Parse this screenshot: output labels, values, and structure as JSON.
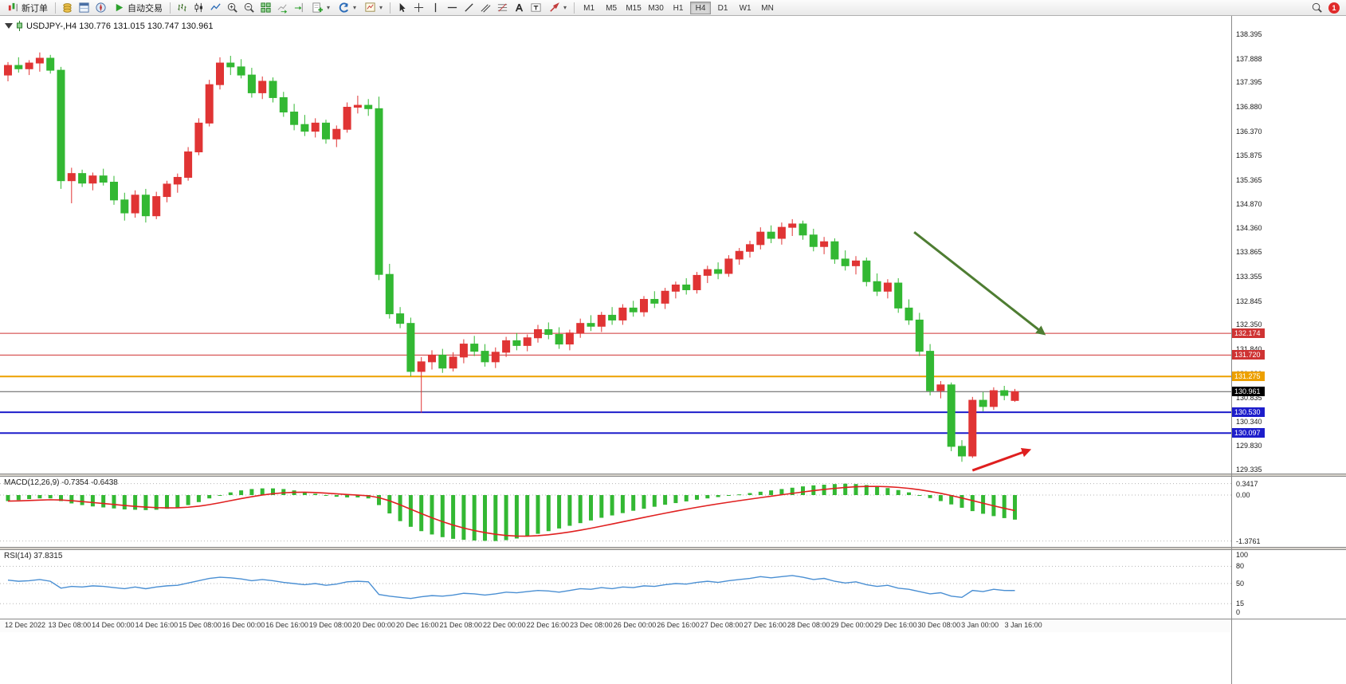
{
  "toolbar": {
    "new_order_label": "新订单",
    "autotrade_label": "自动交易",
    "timeframes": [
      "M1",
      "M5",
      "M15",
      "M30",
      "H1",
      "H4",
      "D1",
      "W1",
      "MN"
    ],
    "active_timeframe": "H4",
    "notification_count": "1"
  },
  "chart": {
    "title": "USDJPY-,H4 130.776 131.015 130.747 130.961",
    "symbol": "USDJPY-",
    "period": "H4",
    "open": "130.776",
    "high": "131.015",
    "low": "130.747",
    "close": "130.961"
  },
  "chart_data": {
    "type": "candlestick",
    "title": "USDJPY-,H4",
    "colors": {
      "up": "#e03434",
      "down": "#33b833",
      "hline_red": "#cf3333",
      "hline_blue": "#1d1dcb",
      "hline_orange": "#eda000",
      "hline_gray": "#5a5a5a",
      "macd_hist": "#33b833",
      "macd_signal": "#e02020",
      "rsi_line": "#4a8fd3",
      "arrow_green": "#4e7d32",
      "arrow_red": "#df1f1f"
    },
    "price_axis": {
      "labels": [
        "138.395",
        "137.888",
        "137.395",
        "136.880",
        "136.370",
        "135.875",
        "135.365",
        "134.870",
        "134.360",
        "133.865",
        "133.355",
        "132.845",
        "132.350",
        "131.840",
        "131.330",
        "130.835",
        "130.340",
        "129.830",
        "129.335"
      ],
      "current": {
        "value": "130.961",
        "color": "#000000"
      }
    },
    "hlines": [
      {
        "price": 132.174,
        "color": "#cf3333",
        "width": 1,
        "tag": "132.174"
      },
      {
        "price": 131.72,
        "color": "#cf3333",
        "width": 1,
        "tag": "131.720"
      },
      {
        "price": 131.275,
        "color": "#eda000",
        "width": 2,
        "tag": "131.275"
      },
      {
        "price": 130.96,
        "color": "#5a5a5a",
        "width": 1,
        "tag": null
      },
      {
        "price": 130.53,
        "color": "#1d1dcb",
        "width": 2,
        "tag": "130.530"
      },
      {
        "price": 130.097,
        "color": "#1d1dcb",
        "width": 2,
        "tag": "130.097"
      }
    ],
    "arrows": [
      {
        "name": "downtrend-arrow",
        "color": "green",
        "from": [
          85.5,
          134.28
        ],
        "to": [
          97.7,
          132.17
        ]
      },
      {
        "name": "reversal-arrow",
        "color": "red",
        "from": [
          91.0,
          129.32
        ],
        "to": [
          96.3,
          129.74
        ]
      }
    ],
    "candles": [
      [
        137.55,
        137.82,
        137.42,
        137.75
      ],
      [
        137.75,
        137.92,
        137.6,
        137.68
      ],
      [
        137.68,
        137.86,
        137.55,
        137.8
      ],
      [
        137.8,
        138.02,
        137.62,
        137.9
      ],
      [
        137.9,
        137.97,
        137.58,
        137.65
      ],
      [
        137.65,
        137.72,
        135.18,
        135.35
      ],
      [
        135.35,
        135.62,
        134.88,
        135.5
      ],
      [
        135.5,
        135.58,
        135.22,
        135.3
      ],
      [
        135.3,
        135.52,
        135.15,
        135.45
      ],
      [
        135.45,
        135.6,
        135.25,
        135.32
      ],
      [
        135.32,
        135.45,
        134.85,
        134.95
      ],
      [
        134.95,
        135.1,
        134.52,
        134.68
      ],
      [
        134.68,
        135.15,
        134.58,
        135.05
      ],
      [
        135.05,
        135.18,
        134.48,
        134.62
      ],
      [
        134.62,
        135.12,
        134.55,
        135.02
      ],
      [
        135.02,
        135.35,
        134.9,
        135.28
      ],
      [
        135.28,
        135.5,
        135.1,
        135.42
      ],
      [
        135.42,
        136.05,
        135.35,
        135.95
      ],
      [
        135.95,
        136.65,
        135.88,
        136.55
      ],
      [
        136.55,
        137.45,
        136.48,
        137.35
      ],
      [
        137.35,
        137.92,
        137.25,
        137.8
      ],
      [
        137.8,
        137.95,
        137.55,
        137.72
      ],
      [
        137.72,
        137.88,
        137.48,
        137.55
      ],
      [
        137.55,
        137.7,
        137.08,
        137.18
      ],
      [
        137.18,
        137.52,
        137.05,
        137.42
      ],
      [
        137.42,
        137.5,
        136.98,
        137.08
      ],
      [
        137.08,
        137.2,
        136.68,
        136.78
      ],
      [
        136.78,
        136.95,
        136.4,
        136.52
      ],
      [
        136.52,
        136.72,
        136.28,
        136.38
      ],
      [
        136.38,
        136.65,
        136.25,
        136.55
      ],
      [
        136.55,
        136.62,
        136.12,
        136.22
      ],
      [
        136.22,
        136.5,
        136.05,
        136.42
      ],
      [
        136.42,
        136.98,
        136.35,
        136.88
      ],
      [
        136.88,
        137.12,
        136.75,
        136.92
      ],
      [
        136.92,
        137.05,
        136.7,
        136.85
      ],
      [
        136.85,
        137.1,
        133.28,
        133.4
      ],
      [
        133.4,
        133.62,
        132.48,
        132.58
      ],
      [
        132.58,
        132.72,
        132.28,
        132.38
      ],
      [
        132.38,
        132.5,
        131.28,
        131.38
      ],
      [
        131.38,
        131.68,
        130.52,
        131.58
      ],
      [
        131.58,
        131.82,
        131.42,
        131.72
      ],
      [
        131.72,
        131.85,
        131.35,
        131.45
      ],
      [
        131.45,
        131.78,
        131.38,
        131.68
      ],
      [
        131.68,
        132.05,
        131.55,
        131.95
      ],
      [
        131.95,
        132.12,
        131.7,
        131.8
      ],
      [
        131.8,
        131.95,
        131.48,
        131.58
      ],
      [
        131.58,
        131.88,
        131.45,
        131.78
      ],
      [
        131.78,
        132.1,
        131.68,
        132.02
      ],
      [
        132.02,
        132.18,
        131.82,
        131.92
      ],
      [
        131.92,
        132.15,
        131.8,
        132.08
      ],
      [
        132.08,
        132.35,
        131.98,
        132.25
      ],
      [
        132.25,
        132.4,
        132.05,
        132.15
      ],
      [
        132.15,
        132.3,
        131.85,
        131.95
      ],
      [
        131.95,
        132.25,
        131.82,
        132.18
      ],
      [
        132.18,
        132.48,
        132.08,
        132.38
      ],
      [
        132.38,
        132.55,
        132.22,
        132.32
      ],
      [
        132.32,
        132.62,
        132.2,
        132.55
      ],
      [
        132.55,
        132.72,
        132.35,
        132.45
      ],
      [
        132.45,
        132.78,
        132.35,
        132.7
      ],
      [
        132.7,
        132.85,
        132.52,
        132.62
      ],
      [
        132.62,
        132.95,
        132.52,
        132.88
      ],
      [
        132.88,
        133.05,
        132.7,
        132.8
      ],
      [
        132.8,
        133.12,
        132.68,
        133.05
      ],
      [
        133.05,
        133.25,
        132.9,
        133.18
      ],
      [
        133.18,
        133.32,
        132.98,
        133.08
      ],
      [
        133.08,
        133.45,
        133.0,
        133.38
      ],
      [
        133.38,
        133.58,
        133.22,
        133.5
      ],
      [
        133.5,
        133.65,
        133.3,
        133.42
      ],
      [
        133.42,
        133.8,
        133.35,
        133.72
      ],
      [
        133.72,
        133.95,
        133.6,
        133.88
      ],
      [
        133.88,
        134.1,
        133.75,
        134.02
      ],
      [
        134.02,
        134.38,
        133.92,
        134.28
      ],
      [
        134.28,
        134.42,
        134.05,
        134.15
      ],
      [
        134.15,
        134.48,
        134.02,
        134.38
      ],
      [
        134.38,
        134.55,
        134.2,
        134.45
      ],
      [
        134.45,
        134.52,
        134.12,
        134.22
      ],
      [
        134.22,
        134.35,
        133.88,
        133.98
      ],
      [
        133.98,
        134.18,
        133.82,
        134.08
      ],
      [
        134.08,
        134.15,
        133.62,
        133.72
      ],
      [
        133.72,
        133.9,
        133.48,
        133.58
      ],
      [
        133.58,
        133.78,
        133.4,
        133.68
      ],
      [
        133.68,
        133.75,
        133.15,
        133.25
      ],
      [
        133.25,
        133.42,
        132.95,
        133.05
      ],
      [
        133.05,
        133.3,
        132.9,
        133.22
      ],
      [
        133.22,
        133.32,
        132.6,
        132.7
      ],
      [
        132.7,
        132.88,
        132.35,
        132.45
      ],
      [
        132.45,
        132.6,
        131.7,
        131.8
      ],
      [
        131.8,
        131.95,
        130.88,
        130.98
      ],
      [
        130.98,
        131.18,
        130.82,
        131.1
      ],
      [
        131.1,
        131.15,
        129.72,
        129.82
      ],
      [
        129.82,
        129.95,
        129.5,
        129.62
      ],
      [
        129.62,
        130.85,
        129.58,
        130.78
      ],
      [
        130.78,
        130.95,
        130.55,
        130.65
      ],
      [
        130.65,
        131.05,
        130.58,
        130.98
      ],
      [
        130.98,
        131.08,
        130.78,
        130.88
      ],
      [
        130.776,
        131.015,
        130.747,
        130.961
      ]
    ],
    "macd": {
      "label": "MACD(12,26,9) -0.7354 -0.6438",
      "params": "12,26,9",
      "main_value": -0.7354,
      "signal_value": -0.6438,
      "axis_labels": [
        "0.3417",
        "0.00",
        "-1.3761"
      ],
      "axis_values": [
        0.3417,
        0,
        -1.3761
      ],
      "histogram": [
        -0.18,
        -0.15,
        -0.12,
        -0.1,
        -0.1,
        -0.18,
        -0.25,
        -0.3,
        -0.34,
        -0.37,
        -0.4,
        -0.43,
        -0.44,
        -0.45,
        -0.44,
        -0.41,
        -0.37,
        -0.3,
        -0.21,
        -0.1,
        0.0,
        0.08,
        0.14,
        0.18,
        0.2,
        0.2,
        0.18,
        0.14,
        0.09,
        0.04,
        -0.01,
        -0.05,
        -0.07,
        -0.07,
        -0.1,
        -0.3,
        -0.55,
        -0.78,
        -0.95,
        -1.08,
        -1.18,
        -1.26,
        -1.31,
        -1.34,
        -1.36,
        -1.37,
        -1.3761,
        -1.35,
        -1.3,
        -1.24,
        -1.16,
        -1.08,
        -1.0,
        -0.92,
        -0.84,
        -0.76,
        -0.68,
        -0.61,
        -0.54,
        -0.47,
        -0.41,
        -0.35,
        -0.29,
        -0.24,
        -0.19,
        -0.14,
        -0.1,
        -0.06,
        -0.02,
        0.02,
        0.06,
        0.1,
        0.14,
        0.18,
        0.22,
        0.26,
        0.29,
        0.31,
        0.33,
        0.3417,
        0.33,
        0.3,
        0.26,
        0.21,
        0.15,
        0.08,
        0.0,
        -0.09,
        -0.18,
        -0.28,
        -0.38,
        -0.48,
        -0.56,
        -0.63,
        -0.69,
        -0.7354
      ]
    },
    "rsi": {
      "label": "RSI(14) 37.8315",
      "period": 14,
      "value": 37.8315,
      "axis_labels": [
        "100",
        "80",
        "50",
        "15",
        "0"
      ],
      "levels": [
        80,
        50,
        15
      ],
      "values": [
        56,
        54,
        55,
        57,
        54,
        42,
        45,
        44,
        46,
        45,
        43,
        41,
        44,
        41,
        44,
        46,
        47,
        51,
        55,
        59,
        61,
        60,
        58,
        55,
        57,
        55,
        52,
        50,
        48,
        50,
        47,
        49,
        53,
        54,
        53,
        31,
        28,
        26,
        24,
        27,
        29,
        28,
        30,
        33,
        32,
        30,
        32,
        35,
        34,
        36,
        38,
        37,
        35,
        38,
        41,
        40,
        43,
        41,
        44,
        43,
        46,
        45,
        48,
        50,
        49,
        52,
        54,
        52,
        55,
        57,
        59,
        62,
        60,
        62,
        64,
        61,
        57,
        59,
        54,
        51,
        53,
        48,
        45,
        47,
        42,
        40,
        36,
        32,
        34,
        28,
        26,
        38,
        36,
        40,
        38,
        37.8315
      ]
    },
    "time_axis": {
      "labels": [
        "12 Dec 2022",
        "13 Dec 08:00",
        "14 Dec 00:00",
        "14 Dec 16:00",
        "15 Dec 08:00",
        "16 Dec 00:00",
        "16 Dec 16:00",
        "19 Dec 08:00",
        "20 Dec 00:00",
        "20 Dec 16:00",
        "21 Dec 08:00",
        "22 Dec 00:00",
        "22 Dec 16:00",
        "23 Dec 08:00",
        "26 Dec 00:00",
        "26 Dec 16:00",
        "27 Dec 08:00",
        "27 Dec 16:00",
        "28 Dec 08:00",
        "29 Dec 00:00",
        "29 Dec 16:00",
        "30 Dec 08:00",
        "3 Jan 00:00",
        "3 Jan 16:00"
      ]
    }
  }
}
